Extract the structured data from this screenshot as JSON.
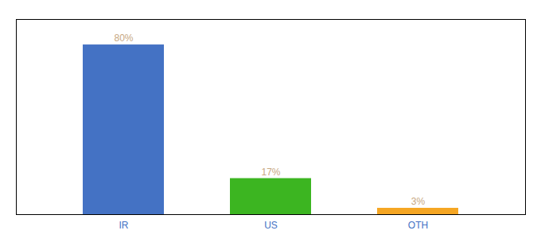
{
  "chart_data": {
    "type": "bar",
    "categories": [
      "IR",
      "US",
      "OTH"
    ],
    "values": [
      80,
      17,
      3
    ],
    "value_labels": [
      "80%",
      "17%",
      "3%"
    ],
    "colors": [
      "#4472c4",
      "#3cb521",
      "#f5a623"
    ],
    "ylim": [
      0,
      92
    ],
    "data_labels": true,
    "tick_labels": "x"
  }
}
